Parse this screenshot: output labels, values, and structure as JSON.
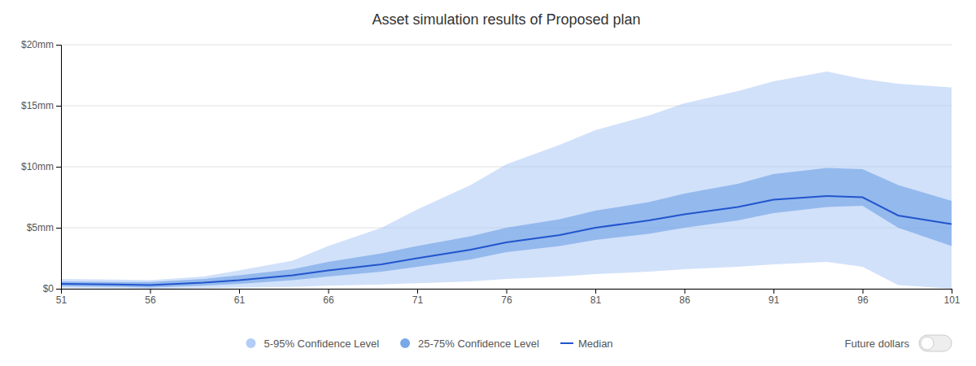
{
  "chart_data": {
    "type": "line",
    "title": "Asset simulation results of Proposed plan",
    "x": [
      51,
      54,
      56,
      59,
      61,
      64,
      66,
      69,
      71,
      74,
      76,
      79,
      81,
      84,
      86,
      89,
      91,
      94,
      96,
      98,
      101
    ],
    "series": [
      {
        "name": "5-95% Confidence Level",
        "type": "band",
        "color": "#abc8f5",
        "low": [
          0.05,
          0.03,
          0.0,
          0.05,
          0.1,
          0.15,
          0.25,
          0.35,
          0.45,
          0.6,
          0.8,
          1.0,
          1.2,
          1.4,
          1.6,
          1.8,
          2.0,
          2.2,
          1.8,
          0.3,
          0.0
        ],
        "high": [
          0.8,
          0.75,
          0.7,
          1.0,
          1.5,
          2.3,
          3.5,
          5.0,
          6.5,
          8.5,
          10.2,
          11.8,
          13.0,
          14.2,
          15.2,
          16.2,
          17.0,
          17.8,
          17.2,
          16.8,
          16.5
        ]
      },
      {
        "name": "25-75% Confidence Level",
        "type": "band",
        "color": "#6b9fe4",
        "low": [
          0.2,
          0.15,
          0.1,
          0.25,
          0.4,
          0.7,
          1.0,
          1.4,
          1.8,
          2.4,
          3.0,
          3.5,
          4.0,
          4.5,
          5.0,
          5.6,
          6.2,
          6.7,
          6.8,
          5.0,
          3.5
        ],
        "high": [
          0.6,
          0.55,
          0.55,
          0.8,
          1.1,
          1.6,
          2.2,
          2.9,
          3.5,
          4.3,
          5.0,
          5.7,
          6.4,
          7.1,
          7.8,
          8.6,
          9.4,
          9.9,
          9.8,
          8.5,
          7.2
        ]
      },
      {
        "name": "Median",
        "type": "line",
        "color": "#2255cc",
        "values": [
          0.4,
          0.35,
          0.3,
          0.5,
          0.7,
          1.1,
          1.5,
          2.0,
          2.5,
          3.2,
          3.8,
          4.4,
          5.0,
          5.6,
          6.1,
          6.7,
          7.3,
          7.6,
          7.5,
          6.0,
          5.3
        ]
      }
    ],
    "xlim": [
      51,
      101
    ],
    "xticks": [
      51,
      56,
      61,
      66,
      71,
      76,
      81,
      86,
      91,
      96,
      101
    ],
    "ylim": [
      0,
      20
    ],
    "yticks": [
      {
        "value": 0,
        "label": "$0"
      },
      {
        "value": 5,
        "label": "$5mm"
      },
      {
        "value": 10,
        "label": "$10mm"
      },
      {
        "value": 15,
        "label": "$15mm"
      },
      {
        "value": 20,
        "label": "$20mm"
      }
    ],
    "grid": "y",
    "legend": "bottom",
    "annotations": [
      "Future dollars"
    ]
  }
}
